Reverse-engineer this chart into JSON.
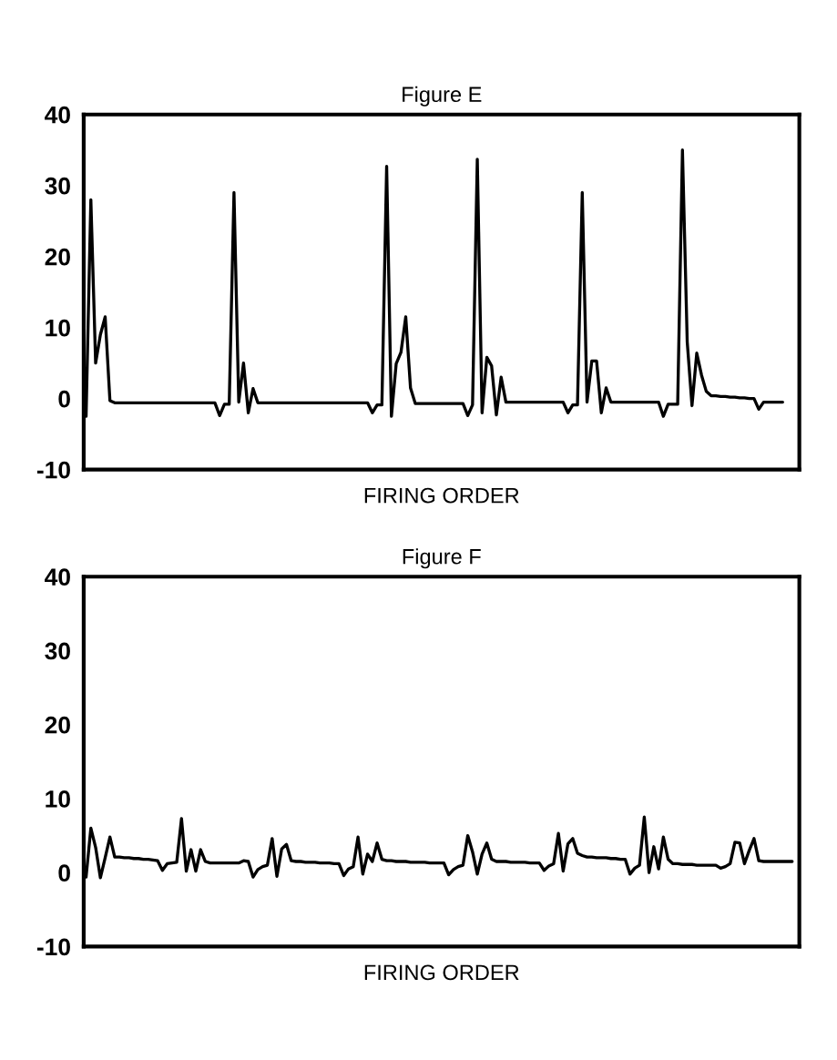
{
  "chart_data": [
    {
      "type": "line",
      "title": "Figure E",
      "xlabel": "FIRING ORDER",
      "color": "#000000",
      "categories": [
        null,
        null,
        null,
        null,
        null,
        null,
        null,
        null,
        null,
        null,
        null,
        null,
        null,
        null,
        null,
        null,
        null,
        null,
        null,
        null,
        null,
        null,
        null,
        null,
        null,
        null,
        null,
        null,
        null,
        null,
        null,
        null,
        null,
        null,
        null,
        null,
        null,
        null,
        null,
        null,
        null,
        null,
        null,
        null,
        null,
        null,
        null,
        null,
        null,
        null,
        null,
        null,
        null,
        null,
        null,
        null,
        null,
        null,
        null,
        null,
        null,
        null,
        null,
        null,
        null,
        null,
        null,
        null,
        null,
        null,
        null,
        null,
        null,
        null,
        null,
        null,
        null,
        null,
        null,
        null,
        null,
        null,
        null,
        null,
        null,
        null,
        null,
        null,
        null,
        null,
        null,
        null,
        null,
        null,
        null,
        null,
        null,
        null,
        null,
        null,
        null,
        null,
        null,
        null,
        null,
        null,
        null,
        null,
        null,
        null,
        null,
        null,
        null,
        null,
        null,
        null,
        null,
        null,
        null,
        null,
        null,
        null,
        null,
        null,
        null,
        null,
        null,
        null,
        null,
        null,
        null,
        null,
        null,
        null,
        null,
        null,
        null,
        null,
        null,
        null,
        null,
        null,
        null,
        null,
        null,
        null,
        null,
        null,
        null,
        null
      ],
      "values": [
        -2.5,
        28,
        5,
        9,
        11.5,
        -0.3,
        -0.6,
        -0.6,
        -0.6,
        -0.6,
        -0.6,
        -0.6,
        -0.6,
        -0.6,
        -0.6,
        -0.6,
        -0.6,
        -0.6,
        -0.6,
        -0.6,
        -0.6,
        -0.6,
        -0.6,
        -0.6,
        -0.6,
        -0.6,
        -0.6,
        -0.6,
        -2.4,
        -0.8,
        -0.8,
        29,
        -0.5,
        5,
        -2,
        1.4,
        -0.6,
        -0.6,
        -0.6,
        -0.6,
        -0.6,
        -0.6,
        -0.6,
        -0.6,
        -0.6,
        -0.6,
        -0.6,
        -0.6,
        -0.6,
        -0.6,
        -0.6,
        -0.6,
        -0.6,
        -0.6,
        -0.6,
        -0.6,
        -0.6,
        -0.6,
        -0.6,
        -0.6,
        -2,
        -0.9,
        -0.9,
        32.7,
        -2.5,
        4.9,
        6.5,
        11.5,
        1.5,
        -0.7,
        -0.7,
        -0.7,
        -0.7,
        -0.7,
        -0.7,
        -0.7,
        -0.7,
        -0.7,
        -0.7,
        -0.7,
        -2.4,
        -0.9,
        33.7,
        -2,
        5.8,
        4.6,
        -2.3,
        3,
        -0.5,
        -0.5,
        -0.5,
        -0.5,
        -0.5,
        -0.5,
        -0.5,
        -0.5,
        -0.5,
        -0.5,
        -0.5,
        -0.5,
        -0.5,
        -2,
        -0.9,
        -0.9,
        29,
        -0.5,
        5.3,
        5.3,
        -2,
        1.5,
        -0.5,
        -0.5,
        -0.5,
        -0.5,
        -0.5,
        -0.5,
        -0.5,
        -0.5,
        -0.5,
        -0.5,
        -0.5,
        -2.5,
        -0.8,
        -0.8,
        -0.8,
        35,
        8,
        -1,
        6.4,
        3.3,
        1,
        0.4,
        0.4,
        0.3,
        0.3,
        0.2,
        0.2,
        0.1,
        0.1,
        0,
        0,
        -1.5,
        -0.5,
        -0.5,
        -0.5,
        -0.5,
        -0.5,
        null,
        null,
        null
      ],
      "ylim": [
        -10,
        40
      ],
      "yticks": [
        -10,
        0,
        10,
        20,
        30,
        40
      ],
      "tick_labels": "y"
    },
    {
      "type": "line",
      "title": "Figure F",
      "xlabel": "FIRING ORDER",
      "color": "#000000",
      "categories": [
        null,
        null,
        null,
        null,
        null,
        null,
        null,
        null,
        null,
        null,
        null,
        null,
        null,
        null,
        null,
        null,
        null,
        null,
        null,
        null,
        null,
        null,
        null,
        null,
        null,
        null,
        null,
        null,
        null,
        null,
        null,
        null,
        null,
        null,
        null,
        null,
        null,
        null,
        null,
        null,
        null,
        null,
        null,
        null,
        null,
        null,
        null,
        null,
        null,
        null,
        null,
        null,
        null,
        null,
        null,
        null,
        null,
        null,
        null,
        null,
        null,
        null,
        null,
        null,
        null,
        null,
        null,
        null,
        null,
        null,
        null,
        null,
        null,
        null,
        null,
        null,
        null,
        null,
        null,
        null,
        null,
        null,
        null,
        null,
        null,
        null,
        null,
        null,
        null,
        null,
        null,
        null,
        null,
        null,
        null,
        null,
        null,
        null,
        null,
        null,
        null,
        null,
        null,
        null,
        null,
        null,
        null,
        null,
        null,
        null,
        null,
        null,
        null,
        null,
        null,
        null,
        null,
        null,
        null,
        null,
        null,
        null,
        null,
        null,
        null,
        null,
        null,
        null,
        null,
        null,
        null,
        null,
        null,
        null,
        null,
        null,
        null,
        null,
        null,
        null,
        null,
        null,
        null,
        null,
        null,
        null,
        null,
        null,
        null,
        null
      ],
      "values": [
        -0.6,
        6,
        3.4,
        -0.7,
        2,
        4.8,
        2.1,
        2.1,
        2,
        2,
        1.9,
        1.9,
        1.8,
        1.8,
        1.7,
        1.6,
        0.3,
        1.2,
        1.3,
        1.4,
        7.3,
        0.2,
        3.1,
        0.2,
        3.1,
        1.5,
        1.3,
        1.3,
        1.3,
        1.3,
        1.3,
        1.3,
        1.3,
        1.6,
        1.5,
        -0.6,
        0.4,
        0.8,
        1,
        4.6,
        -0.5,
        3.2,
        3.8,
        1.6,
        1.5,
        1.5,
        1.4,
        1.4,
        1.4,
        1.3,
        1.3,
        1.3,
        1.2,
        1.2,
        -0.4,
        0.5,
        0.8,
        4.8,
        -0.2,
        2.5,
        1.5,
        4,
        1.8,
        1.6,
        1.6,
        1.5,
        1.5,
        1.5,
        1.4,
        1.4,
        1.4,
        1.4,
        1.3,
        1.3,
        1.3,
        1.3,
        -0.3,
        0.4,
        0.8,
        1,
        5,
        2.8,
        -0.2,
        2.5,
        4,
        1.8,
        1.5,
        1.5,
        1.5,
        1.4,
        1.4,
        1.4,
        1.4,
        1.3,
        1.3,
        1.3,
        0.3,
        0.9,
        1.2,
        5.3,
        0.2,
        3.9,
        4.6,
        2.6,
        2.3,
        2.1,
        2.1,
        2,
        2,
        2,
        1.9,
        1.9,
        1.8,
        1.8,
        -0.2,
        0.6,
        1,
        7.5,
        0,
        3.5,
        0.5,
        4.8,
        1.8,
        1.2,
        1.2,
        1.1,
        1.1,
        1.1,
        1,
        1,
        1,
        1,
        1,
        0.6,
        0.8,
        1.2,
        4.1,
        4,
        1.2,
        3,
        4.6,
        1.6,
        1.5,
        1.5,
        1.5,
        1.5,
        1.5,
        1.5,
        1.5,
        null
      ],
      "ylim": [
        -10,
        40
      ],
      "yticks": [
        -10,
        0,
        10,
        20,
        30,
        40
      ],
      "tick_labels": "y"
    }
  ]
}
